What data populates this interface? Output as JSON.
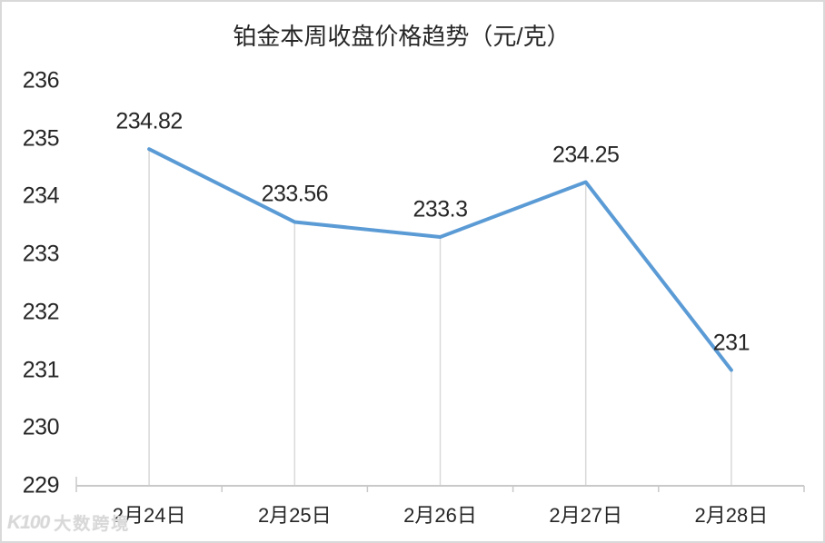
{
  "watermark": {
    "logo": "K100",
    "text": "大数跨境"
  },
  "chart_data": {
    "type": "line",
    "title": "铂金本周收盘价格趋势（元/克）",
    "categories": [
      "2月24日",
      "2月25日",
      "2月26日",
      "2月27日",
      "2月28日"
    ],
    "values": [
      234.82,
      233.56,
      233.3,
      234.25,
      231
    ],
    "data_labels": [
      "234.82",
      "233.56",
      "233.3",
      "234.25",
      "231"
    ],
    "xlabel": "",
    "ylabel": "",
    "ylim": [
      229,
      236
    ],
    "ytick_step": 1,
    "grid": "off",
    "legend": "none",
    "colors": {
      "line": "#5B9BD5",
      "axis": "#c9c9c9",
      "droplines": "#d9d9d9",
      "text": "#262626"
    }
  }
}
